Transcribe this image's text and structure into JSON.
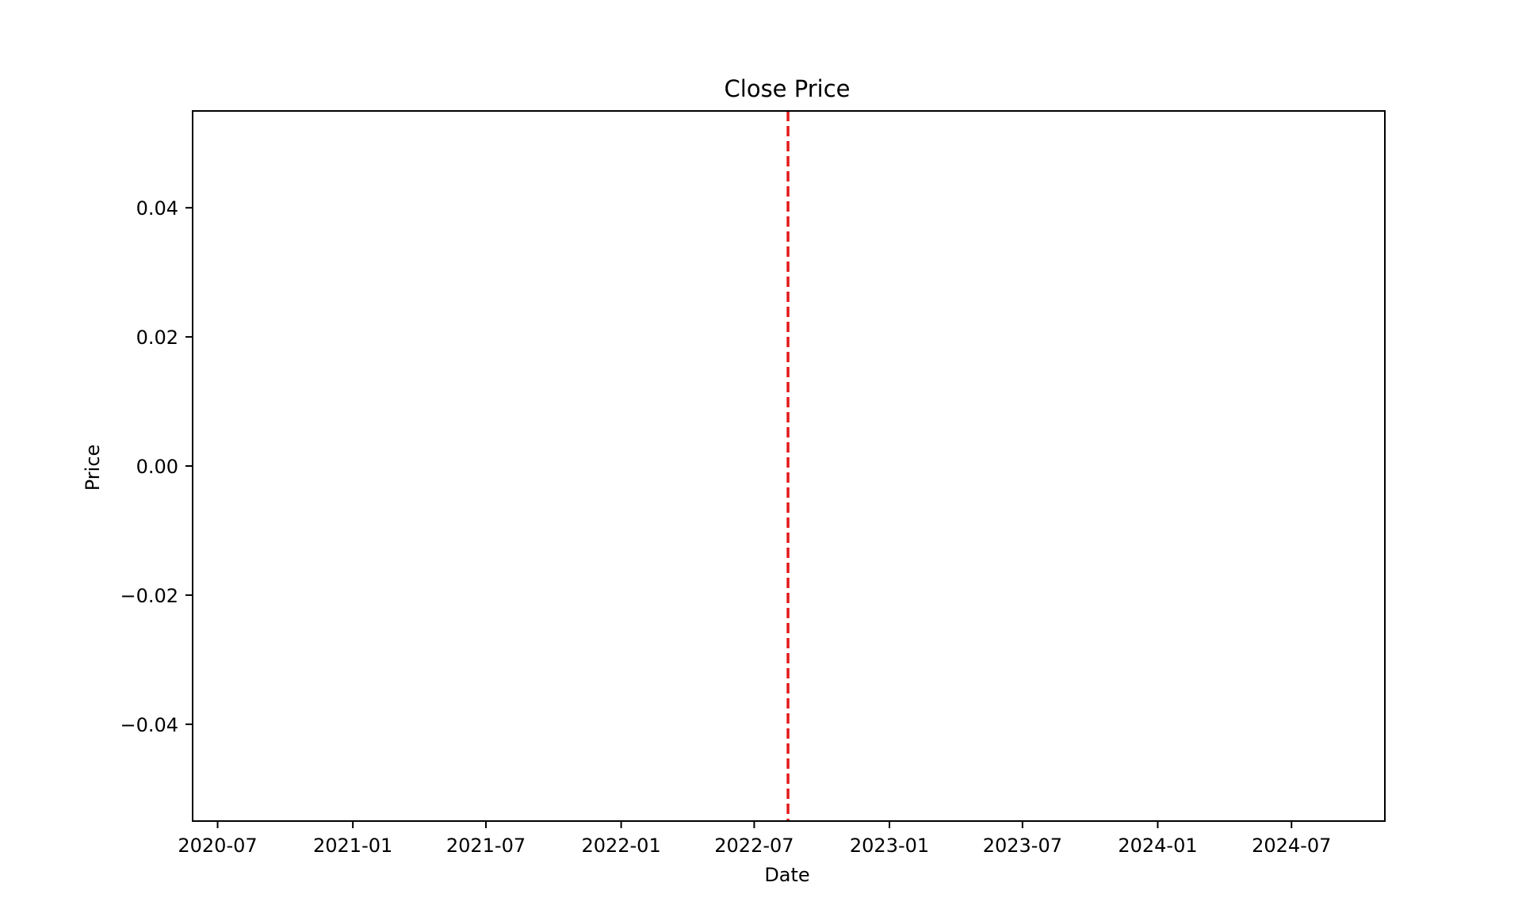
{
  "chart_data": {
    "type": "line",
    "title": "Close Price",
    "xlabel": "Date",
    "ylabel": "Price",
    "x_axis_type": "date",
    "xlim": [
      "2020-05-28",
      "2024-11-05"
    ],
    "ylim": [
      -0.055,
      0.055
    ],
    "x_ticks": [
      {
        "value": "2020-07-01",
        "label": "2020-07"
      },
      {
        "value": "2021-01-01",
        "label": "2021-01"
      },
      {
        "value": "2021-07-01",
        "label": "2021-07"
      },
      {
        "value": "2022-01-01",
        "label": "2022-01"
      },
      {
        "value": "2022-07-01",
        "label": "2022-07"
      },
      {
        "value": "2023-01-01",
        "label": "2023-01"
      },
      {
        "value": "2023-07-01",
        "label": "2023-07"
      },
      {
        "value": "2024-01-01",
        "label": "2024-01"
      },
      {
        "value": "2024-07-01",
        "label": "2024-07"
      }
    ],
    "y_ticks": [
      {
        "value": 0.04,
        "label": "0.04"
      },
      {
        "value": 0.02,
        "label": "0.02"
      },
      {
        "value": 0.0,
        "label": "0.00"
      },
      {
        "value": -0.02,
        "label": "−0.02"
      },
      {
        "value": -0.04,
        "label": "−0.04"
      }
    ],
    "series": [],
    "vlines": [
      {
        "x": "2022-08-16",
        "color": "#e31a1c",
        "style": "dashed"
      }
    ],
    "grid": false,
    "legend": false
  }
}
